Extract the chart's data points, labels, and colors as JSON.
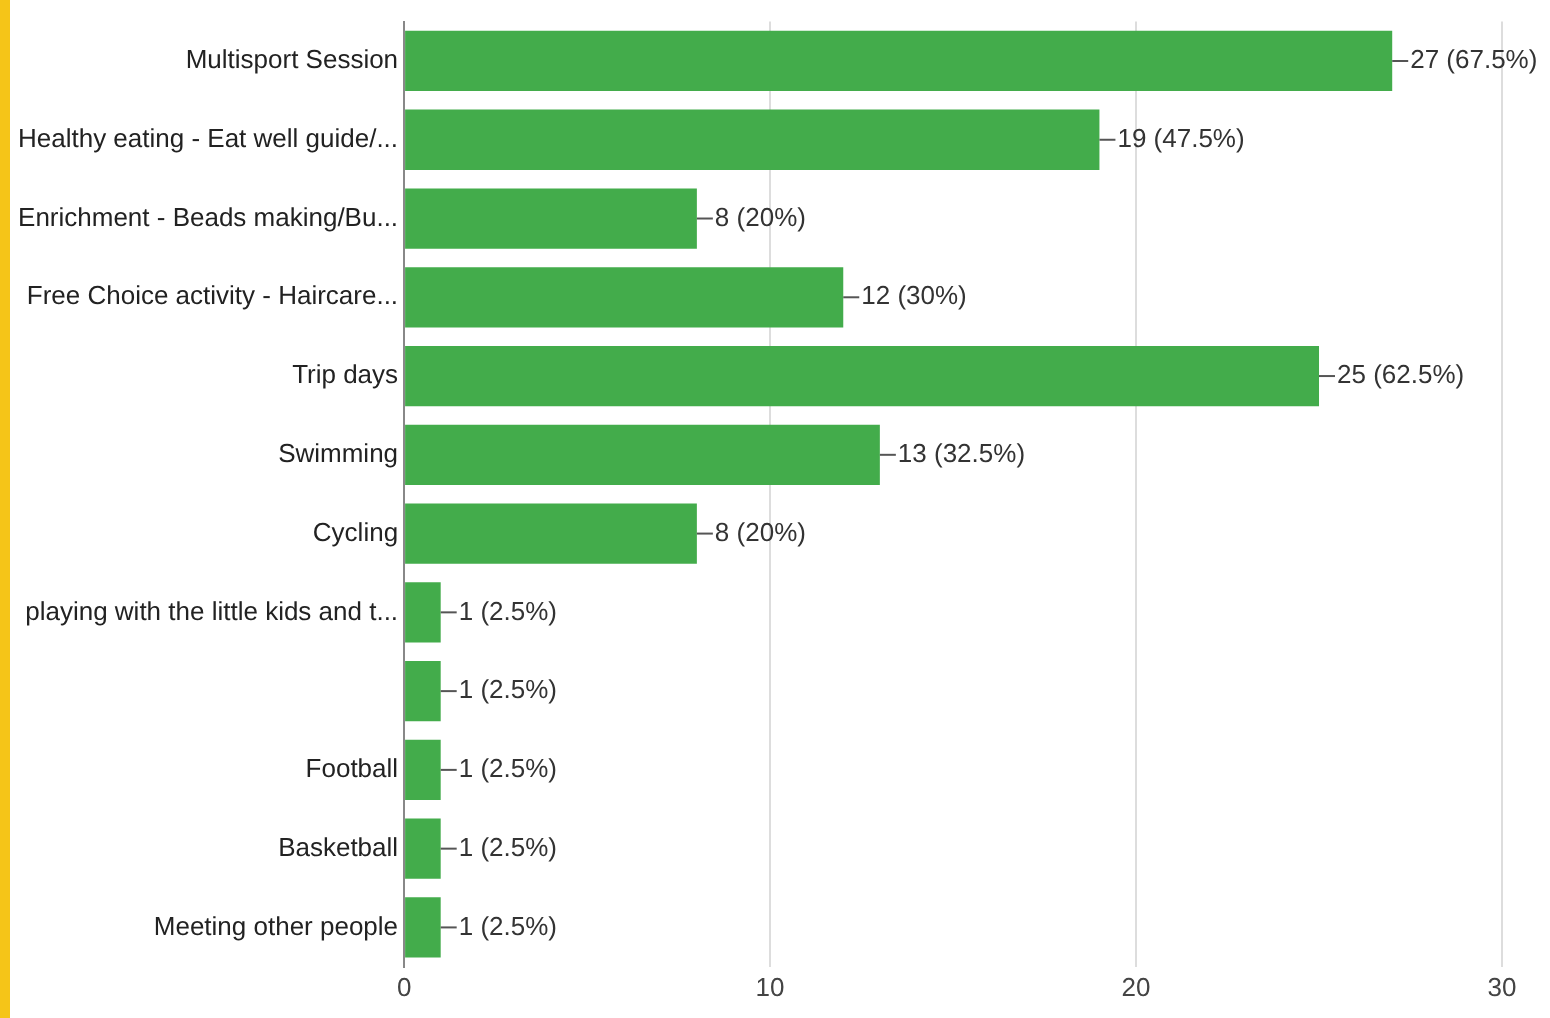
{
  "chart_data": {
    "type": "bar",
    "orientation": "horizontal",
    "categories": [
      "Multisport Session",
      "Healthy eating - Eat well guide/...",
      "Enrichment - Beads making/Bu...",
      "Free Choice activity - Haircare...",
      "Trip days",
      "Swimming",
      "Cycling",
      "playing with the little kids and t...",
      null,
      "Football",
      "Basketball",
      "Meeting other people"
    ],
    "values": [
      27,
      19,
      8,
      12,
      25,
      13,
      8,
      1,
      1,
      1,
      1,
      1
    ],
    "value_labels": [
      "27 (67.5%)",
      "19 (47.5%)",
      "8 (20%)",
      "12 (30%)",
      "25 (62.5%)",
      "13 (32.5%)",
      "8 (20%)",
      "1 (2.5%)",
      "1 (2.5%)",
      "1 (2.5%)",
      "1 (2.5%)",
      "1 (2.5%)"
    ],
    "color": "#43ac4b",
    "xlim": [
      0,
      30
    ],
    "xticks": [
      0,
      10,
      20,
      30
    ],
    "grid": "x",
    "legend": false
  }
}
